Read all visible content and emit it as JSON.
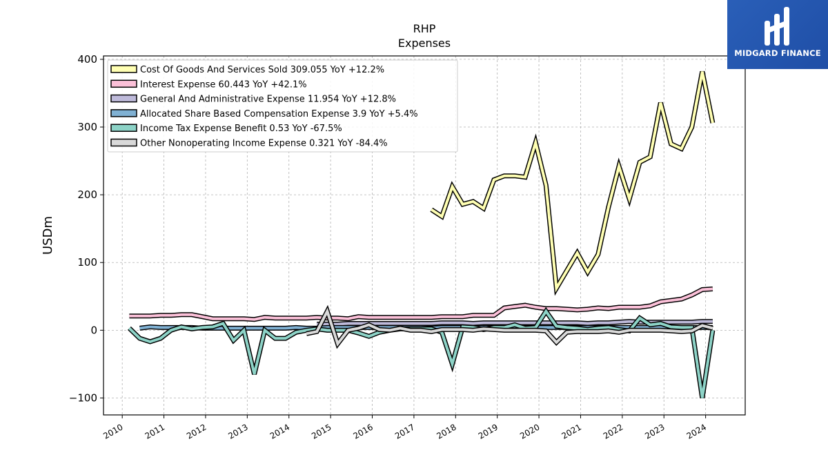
{
  "chart_data": {
    "type": "line",
    "title": "RHP",
    "subtitle": "Expenses",
    "ylabel": "USDm",
    "xlabel": "",
    "ylim": [
      -125,
      405
    ],
    "xlim": [
      2009.55,
      2024.95
    ],
    "yticks": [
      -100,
      0,
      100,
      200,
      300,
      400
    ],
    "ytick_labels": [
      "−100",
      "0",
      "100",
      "200",
      "300",
      "400"
    ],
    "xticks": [
      2010,
      2011,
      2012,
      2013,
      2014,
      2015,
      2016,
      2017,
      2018,
      2019,
      2020,
      2021,
      2022,
      2023,
      2024
    ],
    "xtick_labels": [
      "2010",
      "2011",
      "2012",
      "2013",
      "2014",
      "2015",
      "2016",
      "2017",
      "2018",
      "2019",
      "2020",
      "2021",
      "2022",
      "2023",
      "2024"
    ],
    "grid": true,
    "legend_position": "top-left",
    "series": [
      {
        "name": "Cost Of Goods And Services Sold",
        "legend": "Cost Of Goods And Services Sold  309.055 YoY +12.2%",
        "color": "#ffffb3",
        "x": [
          2017.42,
          2017.67,
          2017.92,
          2018.17,
          2018.42,
          2018.67,
          2018.92,
          2019.17,
          2019.42,
          2019.67,
          2019.92,
          2020.17,
          2020.42,
          2020.67,
          2020.92,
          2021.17,
          2021.42,
          2021.67,
          2021.92,
          2022.17,
          2022.42,
          2022.67,
          2022.92,
          2023.17,
          2023.42,
          2023.67,
          2023.92,
          2024.17
        ],
        "y": [
          178,
          168,
          212,
          186,
          190,
          180,
          222,
          228,
          228,
          226,
          277,
          214,
          62,
          88,
          114,
          86,
          112,
          182,
          242,
          194,
          248,
          256,
          336,
          275,
          268,
          300,
          382,
          306
        ]
      },
      {
        "name": "Interest Expense",
        "legend": "Interest Expense  60.443 YoY +42.1%",
        "color": "#fbc0d8",
        "x": [
          2010.17,
          2010.42,
          2010.67,
          2010.92,
          2011.17,
          2011.42,
          2011.67,
          2011.92,
          2012.17,
          2012.42,
          2012.67,
          2012.92,
          2013.17,
          2013.42,
          2013.67,
          2013.92,
          2014.17,
          2014.42,
          2014.67,
          2014.92,
          2015.17,
          2015.42,
          2015.67,
          2015.92,
          2016.17,
          2016.42,
          2016.67,
          2016.92,
          2017.17,
          2017.42,
          2017.67,
          2017.92,
          2018.17,
          2018.42,
          2018.67,
          2018.92,
          2019.17,
          2019.42,
          2019.67,
          2019.92,
          2020.17,
          2020.42,
          2020.67,
          2020.92,
          2021.17,
          2021.42,
          2021.67,
          2021.92,
          2022.17,
          2022.42,
          2022.67,
          2022.92,
          2023.17,
          2023.42,
          2023.67,
          2023.92,
          2024.17
        ],
        "y": [
          21,
          21,
          21,
          22,
          22,
          23,
          23,
          20,
          17,
          17,
          17,
          17,
          16,
          19,
          18,
          18,
          18,
          18,
          19,
          18,
          18,
          17,
          20,
          19,
          19,
          19,
          19,
          19,
          19,
          19,
          20,
          20,
          20,
          22,
          22,
          22,
          33,
          35,
          37,
          34,
          32,
          32,
          31,
          30,
          31,
          33,
          32,
          34,
          34,
          34,
          36,
          42,
          44,
          46,
          52,
          60,
          61
        ]
      },
      {
        "name": "General And Administrative Expense",
        "legend": "General And Administrative Expense  11.954 YoY +12.8%",
        "color": "#bebada",
        "x": [
          2014.67,
          2014.92,
          2015.17,
          2015.42,
          2015.67,
          2015.92,
          2016.17,
          2016.42,
          2016.67,
          2016.92,
          2017.17,
          2017.42,
          2017.67,
          2017.92,
          2018.17,
          2018.42,
          2018.67,
          2018.92,
          2019.17,
          2019.42,
          2019.67,
          2019.92,
          2020.17,
          2020.42,
          2020.67,
          2020.92,
          2021.17,
          2021.42,
          2021.67,
          2021.92,
          2022.17,
          2022.42,
          2022.67,
          2022.92,
          2023.17,
          2023.42,
          2023.67,
          2023.92,
          2024.17
        ],
        "y": [
          9,
          9,
          9,
          10,
          10,
          10,
          10,
          10,
          10,
          10,
          10,
          10,
          11,
          11,
          11,
          10,
          11,
          11,
          11,
          11,
          11,
          11,
          11,
          11,
          11,
          11,
          10,
          11,
          11,
          12,
          13,
          12,
          12,
          12,
          12,
          12,
          12,
          13,
          13
        ]
      },
      {
        "name": "Allocated Share Based Compensation Expense",
        "legend": "Allocated Share Based Compensation Expense  3.9 YoY +5.4%",
        "color": "#80b1d3",
        "x": [
          2010.42,
          2010.67,
          2010.92,
          2011.17,
          2011.42,
          2011.67,
          2011.92,
          2012.17,
          2012.42,
          2012.67,
          2012.92,
          2013.17,
          2013.42,
          2013.67,
          2013.92,
          2014.17,
          2014.42,
          2014.67,
          2014.92,
          2015.17,
          2015.42,
          2015.67,
          2015.92,
          2016.17,
          2016.42,
          2016.67,
          2016.92,
          2017.17,
          2017.42,
          2017.67,
          2017.92,
          2018.17,
          2018.42,
          2018.67,
          2018.92,
          2019.17,
          2019.42,
          2019.67,
          2019.92,
          2020.17,
          2020.42,
          2020.67,
          2020.92,
          2021.17,
          2021.42,
          2021.67,
          2021.92,
          2022.17,
          2022.42,
          2022.67,
          2022.92,
          2023.17,
          2023.42,
          2023.67,
          2023.92,
          2024.17
        ],
        "y": [
          3,
          5,
          4,
          4,
          4,
          4,
          3,
          3,
          3,
          3,
          3,
          3,
          3,
          3,
          3,
          4,
          3,
          3,
          4,
          4,
          4,
          4,
          4,
          4,
          4,
          4,
          4,
          4,
          3,
          4,
          4,
          4,
          4,
          4,
          4,
          4,
          4,
          4,
          4,
          4,
          4,
          4,
          4,
          4,
          4,
          4,
          4,
          4,
          4,
          4,
          4,
          4,
          4,
          4,
          4,
          4
        ]
      },
      {
        "name": "Income Tax Expense Benefit",
        "legend": "Income Tax Expense Benefit  0.53 YoY -67.5%",
        "color": "#8dd3c7",
        "x": [
          2010.17,
          2010.42,
          2010.67,
          2010.92,
          2011.17,
          2011.42,
          2011.67,
          2011.92,
          2012.17,
          2012.42,
          2012.67,
          2012.92,
          2013.17,
          2013.42,
          2013.67,
          2013.92,
          2014.17,
          2014.42,
          2014.67,
          2014.92,
          2015.17,
          2015.42,
          2015.67,
          2015.92,
          2016.17,
          2016.42,
          2016.67,
          2016.92,
          2017.17,
          2017.42,
          2017.67,
          2017.92,
          2018.17,
          2018.42,
          2018.67,
          2018.92,
          2019.17,
          2019.42,
          2019.67,
          2019.92,
          2020.17,
          2020.42,
          2020.67,
          2020.92,
          2021.17,
          2021.42,
          2021.67,
          2021.92,
          2022.17,
          2022.42,
          2022.67,
          2022.92,
          2023.17,
          2023.42,
          2023.67,
          2023.92,
          2024.17
        ],
        "y": [
          3,
          -12,
          -17,
          -12,
          0,
          5,
          2,
          4,
          5,
          10,
          -15,
          0,
          -65,
          0,
          -12,
          -12,
          -3,
          0,
          2,
          0,
          0,
          0,
          -4,
          -9,
          -3,
          0,
          2,
          2,
          2,
          2,
          -3,
          -50,
          5,
          4,
          1,
          4,
          4,
          8,
          3,
          4,
          28,
          6,
          4,
          3,
          1,
          3,
          4,
          1,
          -1,
          18,
          8,
          10,
          5,
          4,
          4,
          -100,
          0
        ]
      },
      {
        "name": "Other Nonoperating Income Expense",
        "legend": "Other Nonoperating Income Expense  0.321 YoY -84.4%",
        "color": "#d9d9d9",
        "x": [
          2014.42,
          2014.67,
          2014.92,
          2015.17,
          2015.42,
          2015.67,
          2015.92,
          2016.17,
          2016.42,
          2016.67,
          2016.92,
          2017.17,
          2017.42,
          2017.67,
          2017.92,
          2018.17,
          2018.42,
          2018.67,
          2018.92,
          2019.17,
          2019.42,
          2019.67,
          2019.92,
          2020.17,
          2020.42,
          2020.67,
          2020.92,
          2021.17,
          2021.42,
          2021.67,
          2021.92,
          2022.17,
          2022.42,
          2022.67,
          2022.92,
          2023.17,
          2023.42,
          2023.67,
          2023.92,
          2024.17
        ],
        "y": [
          -5,
          -2,
          28,
          -20,
          0,
          3,
          8,
          1,
          0,
          3,
          0,
          0,
          -2,
          1,
          1,
          1,
          0,
          2,
          1,
          0,
          0,
          0,
          0,
          -1,
          -18,
          -3,
          -2,
          -2,
          -2,
          -1,
          -3,
          0,
          0,
          0,
          0,
          -1,
          -2,
          -1,
          7,
          3
        ]
      }
    ]
  },
  "logo": {
    "text": "MIDGARD FINANCE"
  }
}
